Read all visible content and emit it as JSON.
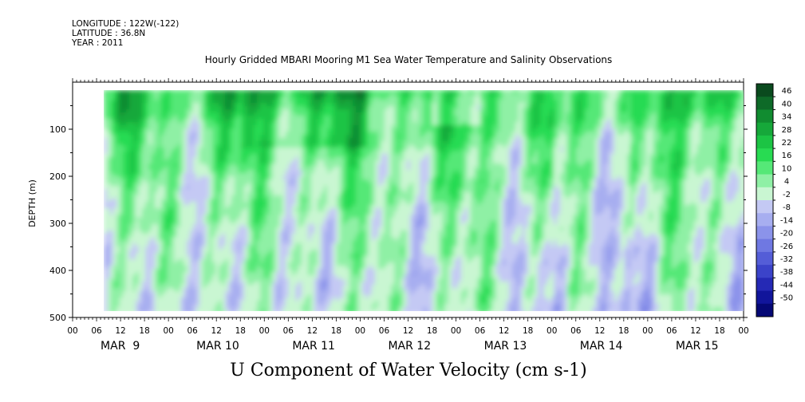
{
  "header": {
    "longitude": "LONGITUDE : 122W(-122)",
    "latitude": "LATITUDE : 36.8N",
    "year": "YEAR : 2011"
  },
  "chart_data": {
    "type": "heatmap",
    "title": "Hourly Gridded MBARI Mooring M1 Sea Water Temperature and Salinity Observations",
    "xlabel": "U Component of Water Velocity (cm s-1)",
    "ylabel": "DEPTH (m)",
    "y_ticks": [
      100,
      200,
      300,
      400,
      500
    ],
    "ylim": [
      500,
      0
    ],
    "x_hour_ticks": [
      "00",
      "06",
      "12",
      "18",
      "00",
      "06",
      "12",
      "18",
      "00",
      "06",
      "12",
      "18",
      "00",
      "06",
      "12",
      "18",
      "00",
      "06",
      "12",
      "18",
      "00",
      "06",
      "12",
      "18",
      "00",
      "06",
      "12",
      "18",
      "00"
    ],
    "x_day_labels": [
      "MAR  9",
      "MAR 10",
      "MAR 11",
      "MAR 12",
      "MAR 13",
      "MAR 14",
      "MAR 15"
    ],
    "colorbar_labels": [
      "46",
      "40",
      "34",
      "28",
      "22",
      "16",
      "10",
      "4",
      "-2",
      "-8",
      "-14",
      "-20",
      "-26",
      "-32",
      "-38",
      "-44",
      "-50"
    ],
    "colorbar_colors": [
      "#0a4a1e",
      "#0e6a28",
      "#118c30",
      "#16a83a",
      "#1cc444",
      "#28db52",
      "#55e877",
      "#8ff0a5",
      "#c9f6d2",
      "#c4c9f4",
      "#a7aef0",
      "#8b93ea",
      "#6f78e2",
      "#545dd7",
      "#3b43c9",
      "#2529b5",
      "#11159b",
      "#050875"
    ],
    "grid": false,
    "legend": "colorbar-right"
  }
}
